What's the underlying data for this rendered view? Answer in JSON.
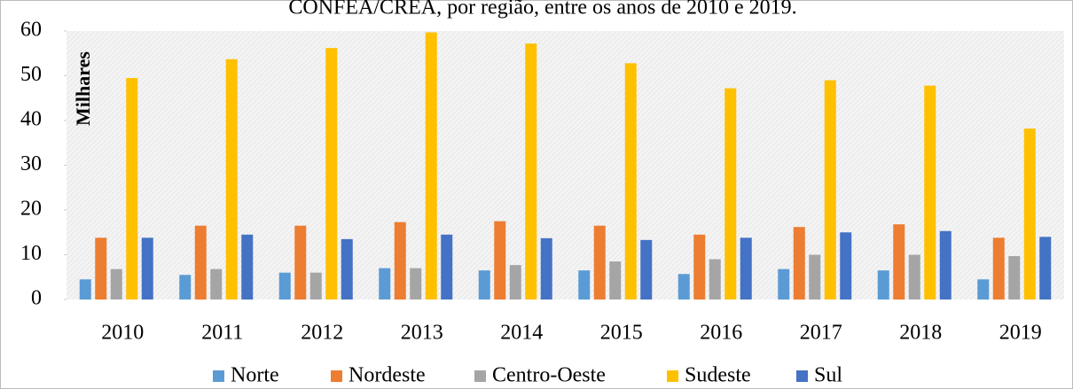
{
  "chart_data": {
    "type": "bar",
    "title": "CONFEA/CREA, por região, entre os anos de 2010 e 2019.",
    "y_label": "Milhares",
    "categories": [
      "2010",
      "2011",
      "2012",
      "2013",
      "2014",
      "2015",
      "2016",
      "2017",
      "2018",
      "2019"
    ],
    "series": [
      {
        "name": "Norte",
        "color": "#5b9bd5",
        "values": [
          4.5,
          5.5,
          6.0,
          7.0,
          6.5,
          6.5,
          5.7,
          6.8,
          6.5,
          4.5
        ]
      },
      {
        "name": "Nordeste",
        "color": "#ed7d31",
        "values": [
          13.8,
          16.5,
          16.5,
          17.3,
          17.5,
          16.5,
          14.5,
          16.2,
          16.8,
          13.8
        ]
      },
      {
        "name": "Centro-Oeste",
        "color": "#a5a5a5",
        "values": [
          6.8,
          6.8,
          6.0,
          7.0,
          7.7,
          8.5,
          9.0,
          10.0,
          10.0,
          9.7
        ]
      },
      {
        "name": "Sudeste",
        "color": "#ffc000",
        "values": [
          49.5,
          53.7,
          56.2,
          59.7,
          57.2,
          52.8,
          47.2,
          49.0,
          47.8,
          38.2
        ]
      },
      {
        "name": "Sul",
        "color": "#4472c4",
        "values": [
          13.8,
          14.5,
          13.5,
          14.5,
          13.7,
          13.3,
          13.8,
          15.0,
          15.3,
          14.0
        ]
      }
    ],
    "ylim": [
      0,
      60
    ],
    "yticks": [
      0,
      10,
      20,
      30,
      40,
      50,
      60
    ],
    "legend": "bottom"
  }
}
